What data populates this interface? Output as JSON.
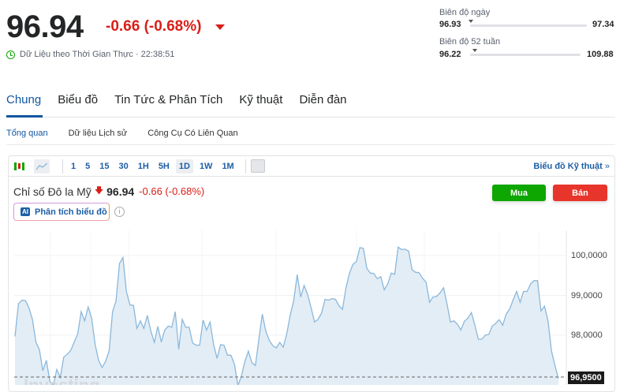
{
  "quote": {
    "price": "96.94",
    "change": "-0.66 (-0.68%)",
    "realtime": "Dữ Liệu theo Thời Gian Thực · 22:38:51"
  },
  "ranges": [
    {
      "label": "Biên độ ngày",
      "low": "96.93",
      "high": "97.34",
      "position": 0.0
    },
    {
      "label": "Biên độ 52 tuần",
      "low": "96.22",
      "high": "109.88",
      "position": 0.05
    }
  ],
  "tabs": [
    {
      "label": "Chung",
      "active": true
    },
    {
      "label": "Biểu đồ"
    },
    {
      "label": "Tin Tức & Phân Tích"
    },
    {
      "label": "Kỹ thuật"
    },
    {
      "label": "Diễn đàn"
    }
  ],
  "subtabs": [
    {
      "label": "Tổng quan",
      "active": true
    },
    {
      "label": "Dữ liệu Lịch sử"
    },
    {
      "label": "Công Cụ Có Liên Quan"
    }
  ],
  "toolbar": {
    "intervals": [
      "1",
      "5",
      "15",
      "30",
      "1H",
      "5H",
      "1D",
      "1W",
      "1M"
    ],
    "active_interval": "1D",
    "tech_link": "Biểu đồ Kỹ thuật",
    "tech_link_arrow": "»"
  },
  "instrument": {
    "name": "Chỉ số Đô la Mỹ",
    "price": "96.94",
    "change": "-0.66 (-0.68%)"
  },
  "ai_button": "Phân tích biểu đồ",
  "buy_label": "Mua",
  "sell_label": "Bán",
  "colors": {
    "accent": "#1256a0",
    "down": "#d91e18",
    "buy": "#0ea600",
    "sell": "#e8352b",
    "line": "#8ab8dc",
    "fill": "#e3edf5"
  },
  "watermark": "Investing",
  "chart_data": {
    "type": "area",
    "y_ticks": [
      "100,0000",
      "99,0000",
      "98,0000"
    ],
    "y_tick_values": [
      100,
      99,
      98
    ],
    "current_value_label": "96,9500",
    "current_value": 96.95,
    "grid": true,
    "values": [
      97.97,
      98.79,
      98.88,
      98.87,
      98.69,
      98.4,
      97.83,
      97.64,
      97.11,
      97.37,
      96.84,
      96.75,
      97.14,
      96.94,
      97.45,
      97.52,
      97.62,
      97.83,
      98.03,
      98.59,
      98.36,
      98.71,
      98.43,
      97.77,
      97.37,
      97.19,
      97.34,
      97.6,
      98.59,
      98.86,
      99.8,
      99.95,
      99.09,
      98.76,
      98.75,
      98.17,
      98.36,
      98.17,
      98.5,
      98.1,
      97.82,
      98.22,
      97.83,
      98.13,
      98.23,
      98.2,
      98.59,
      97.65,
      98.4,
      98.2,
      98.2,
      97.8,
      97.75,
      97.75,
      98.38,
      98.13,
      98.33,
      97.77,
      97.42,
      97.76,
      97.75,
      97.5,
      97.5,
      97.27,
      96.73,
      96.98,
      97.34,
      97.6,
      97.31,
      97.24,
      97.9,
      98.53,
      98.1,
      97.87,
      97.74,
      97.68,
      97.82,
      97.7,
      98.03,
      98.5,
      98.86,
      99.52,
      98.96,
      99.25,
      99.02,
      98.69,
      98.33,
      98.4,
      98.56,
      98.9,
      98.88,
      98.92,
      98.9,
      98.74,
      98.65,
      99.19,
      99.55,
      99.78,
      99.85,
      100.2,
      100.18,
      99.68,
      99.56,
      99.55,
      99.42,
      99.47,
      99.14,
      99.29,
      99.56,
      99.53,
      100.21,
      100.15,
      100.16,
      100.11,
      99.64,
      99.58,
      99.57,
      99.43,
      99.33,
      98.83,
      98.96,
      98.97,
      99.06,
      99.19,
      98.79,
      98.33,
      98.36,
      98.28,
      98.13,
      98.35,
      98.43,
      98.57,
      98.26,
      97.9,
      97.9,
      98.0,
      98.02,
      98.23,
      98.3,
      98.39,
      98.25,
      98.53,
      98.66,
      98.89,
      99.1,
      98.83,
      99.1,
      99.1,
      99.29,
      99.37,
      99.37,
      98.61,
      98.73,
      98.36,
      97.6,
      97.24,
      96.91
    ]
  }
}
